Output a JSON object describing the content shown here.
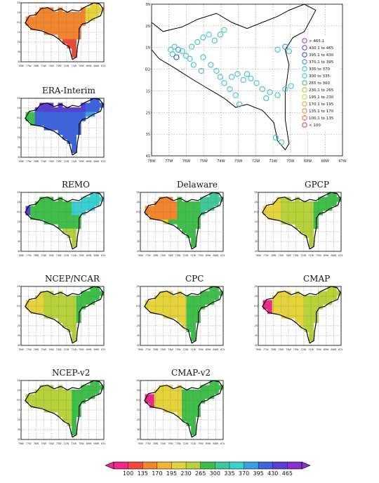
{
  "panels": [
    {
      "id": "top-left",
      "title": "",
      "palette": "era_top"
    },
    {
      "id": "era-interim",
      "title": "ERA-Interim",
      "palette": "era"
    },
    {
      "id": "remo",
      "title": "REMO",
      "palette": "remo"
    },
    {
      "id": "delaware",
      "title": "Delaware",
      "palette": "delaware"
    },
    {
      "id": "gpcp",
      "title": "GPCP",
      "palette": "gpcp"
    },
    {
      "id": "ncep-ncar",
      "title": "NCEP/NCAR",
      "palette": "ncep"
    },
    {
      "id": "cpc",
      "title": "CPC",
      "palette": "cpc"
    },
    {
      "id": "cmap",
      "title": "CMAP",
      "palette": "cmap"
    },
    {
      "id": "ncep-v2",
      "title": "NCEP-v2",
      "palette": "ncepv2"
    },
    {
      "id": "cmap-v2",
      "title": "CMAP-v2",
      "palette": "cmapv2"
    }
  ],
  "small_map_axes": {
    "x_ticks": [
      "78W",
      "77W",
      "76W",
      "75W",
      "74W",
      "73W",
      "72W",
      "71W",
      "70W",
      "69W",
      "68W",
      "67W"
    ],
    "y_ticks": [
      "2N",
      "1N",
      "EQ",
      "1S",
      "2S",
      "3S",
      "4S"
    ]
  },
  "station_map": {
    "x_ticks": [
      "78W",
      "77W",
      "76W",
      "75W",
      "74W",
      "73W",
      "72W",
      "71W",
      "70W",
      "69W",
      "68W",
      "67W"
    ],
    "y_ticks": [
      "3N",
      "2N",
      "1N",
      "EQ",
      "1S",
      "2S",
      "3S",
      "4S"
    ],
    "legend": [
      {
        "label": "> 465.1",
        "color": "#9a3bd6"
      },
      {
        "label": "430.1 to 465",
        "color": "#6f4ad9"
      },
      {
        "label": "395.1 to 430",
        "color": "#3c4fd8"
      },
      {
        "label": "370.1 to 395",
        "color": "#3d8fe0"
      },
      {
        "label": "335 to 370",
        "color": "#38c6c9"
      },
      {
        "label": "300 to 335",
        "color": "#3fd2a0"
      },
      {
        "label": "265 to 300",
        "color": "#46c74e"
      },
      {
        "label": "230.1 to 265",
        "color": "#9ccc3a"
      },
      {
        "label": "195.1 to 230",
        "color": "#d6cf3a"
      },
      {
        "label": "170.1 to 195",
        "color": "#e6ab38"
      },
      {
        "label": "135.1 to 170",
        "color": "#ec8a36"
      },
      {
        "label": "100.1 to 135",
        "color": "#ea6a3a"
      },
      {
        "label": "< 100",
        "color": "#e0339a"
      }
    ]
  },
  "colorbar": {
    "ticks": [
      "100",
      "135",
      "170",
      "195",
      "230",
      "265",
      "300",
      "335",
      "370",
      "395",
      "430",
      "465"
    ],
    "colors": [
      "#ec2a8a",
      "#ef4a3c",
      "#f2862e",
      "#f0b437",
      "#e6d33b",
      "#b7d23a",
      "#3fbf4a",
      "#3ec99a",
      "#3ad0cf",
      "#3b9fe4",
      "#3c64dc",
      "#5a3fd3",
      "#8a2fd0"
    ]
  }
}
